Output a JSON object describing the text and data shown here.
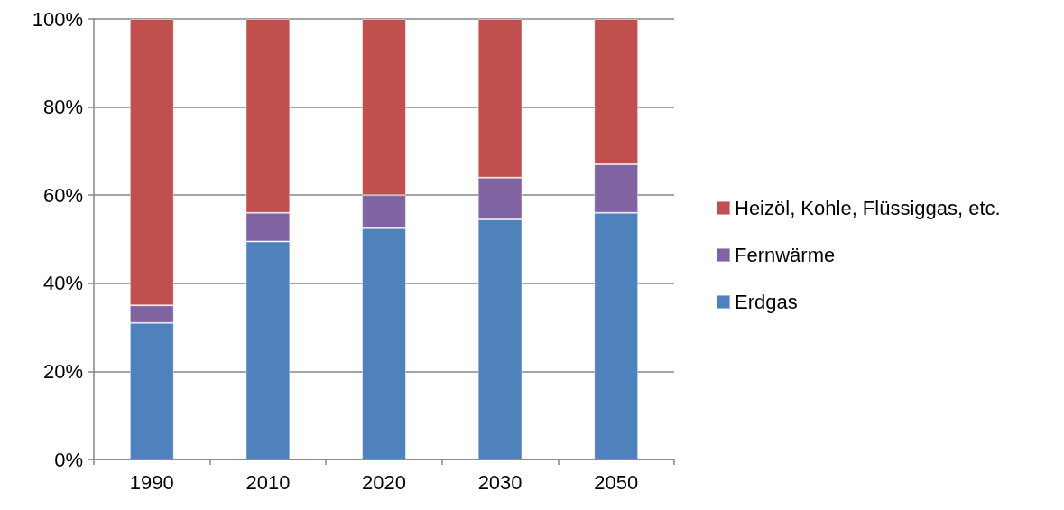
{
  "chart_data": {
    "type": "bar",
    "stacked": true,
    "categories": [
      "1990",
      "2010",
      "2020",
      "2030",
      "2050"
    ],
    "series": [
      {
        "name": "Erdgas",
        "color": "#4f81bd",
        "values": [
          31,
          49.5,
          52.5,
          54.5,
          56
        ]
      },
      {
        "name": "Fernwärme",
        "color": "#8064a2",
        "values": [
          4,
          6.5,
          7.5,
          9.5,
          11
        ]
      },
      {
        "name": "Heizöl, Kohle, Flüssiggas, etc.",
        "color": "#c0504d",
        "values": [
          65,
          44,
          40,
          36,
          33
        ]
      }
    ],
    "ylim": [
      0,
      100
    ],
    "yticks": [
      {
        "value": 0,
        "label": "0%"
      },
      {
        "value": 20,
        "label": "20%"
      },
      {
        "value": 40,
        "label": "40%"
      },
      {
        "value": 60,
        "label": "60%"
      },
      {
        "value": 80,
        "label": "80%"
      },
      {
        "value": 100,
        "label": "100%"
      }
    ],
    "grid": "y",
    "legend": "right"
  }
}
